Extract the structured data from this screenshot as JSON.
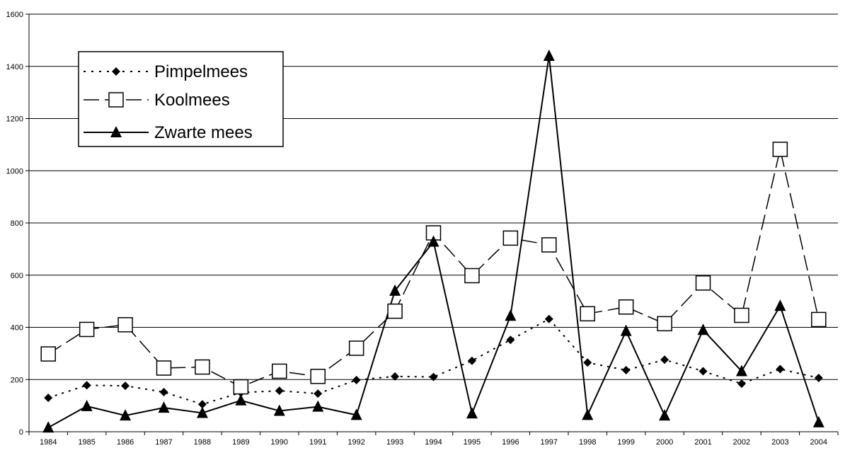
{
  "chart_data": {
    "type": "line",
    "categories": [
      "1984",
      "1985",
      "1986",
      "1987",
      "1988",
      "1989",
      "1990",
      "1991",
      "1992",
      "1993",
      "1994",
      "1995",
      "1996",
      "1997",
      "1998",
      "1999",
      "2000",
      "2001",
      "2002",
      "2003",
      "2004"
    ],
    "series": [
      {
        "name": "Pimpelmees",
        "values": [
          130,
          178,
          176,
          152,
          105,
          150,
          157,
          146,
          198,
          212,
          210,
          272,
          352,
          432,
          265,
          236,
          276,
          232,
          184,
          240,
          206
        ],
        "line": "dotted",
        "marker": "diamond-filled"
      },
      {
        "name": "Koolmees",
        "values": [
          298,
          392,
          410,
          244,
          248,
          172,
          232,
          212,
          320,
          462,
          762,
          598,
          742,
          716,
          452,
          478,
          414,
          570,
          446,
          1082,
          430
        ],
        "line": "dashed",
        "marker": "square-open"
      },
      {
        "name": "Zwarte mees",
        "values": [
          16,
          98,
          62,
          92,
          72,
          120,
          80,
          96,
          64,
          540,
          728,
          70,
          444,
          1440,
          64,
          386,
          62,
          390,
          232,
          482,
          36
        ],
        "line": "solid",
        "marker": "triangle-filled"
      }
    ],
    "y_ticks": [
      "0",
      "200",
      "400",
      "600",
      "800",
      "1000",
      "1200",
      "1400",
      "1600"
    ],
    "ylim": [
      0,
      1600
    ],
    "grid": "horizontal",
    "legend_position": "top-left",
    "title": "",
    "xlabel": "",
    "ylabel": ""
  }
}
